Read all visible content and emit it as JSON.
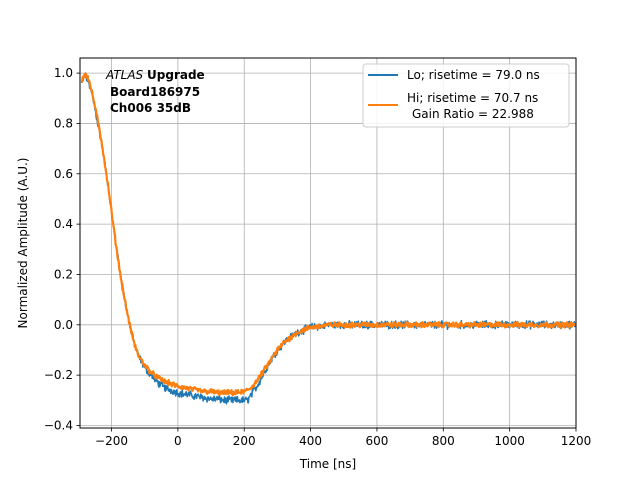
{
  "chart_data": {
    "type": "line",
    "title": "",
    "xlabel": "Time [ns]",
    "ylabel": "Normalized Amplitude (A.U.)",
    "xlim": [
      -295,
      1200
    ],
    "ylim": [
      -0.41,
      1.06
    ],
    "xticks": [
      -200,
      0,
      200,
      400,
      600,
      800,
      1000,
      1200
    ],
    "yticks": [
      -0.4,
      -0.2,
      0.0,
      0.2,
      0.4,
      0.6,
      0.8,
      1.0
    ],
    "grid": true,
    "legend_position": "upper-right",
    "annotation": {
      "experiment_italic": "ATLAS",
      "experiment_bold": "Upgrade",
      "board": "Board186975",
      "channel": "Ch006 35dB"
    },
    "series": [
      {
        "name": "Lo; risetime = 79.0 ns",
        "color": "#1f77b4",
        "noise": 0.012,
        "x": [
          -290,
          -280,
          -270,
          -260,
          -250,
          -240,
          -230,
          -220,
          -210,
          -200,
          -190,
          -180,
          -170,
          -160,
          -150,
          -140,
          -130,
          -120,
          -100,
          -80,
          -60,
          -40,
          -20,
          0,
          20,
          40,
          60,
          80,
          100,
          120,
          140,
          160,
          180,
          200,
          210,
          220,
          240,
          260,
          280,
          300,
          320,
          340,
          360,
          380,
          400,
          430,
          460,
          500,
          550,
          600,
          650,
          700,
          750,
          800,
          850,
          900,
          950,
          1000,
          1050,
          1100,
          1150,
          1200
        ],
        "y": [
          0.96,
          0.99,
          0.97,
          0.92,
          0.86,
          0.79,
          0.72,
          0.64,
          0.55,
          0.45,
          0.35,
          0.26,
          0.18,
          0.1,
          0.03,
          -0.03,
          -0.08,
          -0.12,
          -0.17,
          -0.2,
          -0.23,
          -0.25,
          -0.26,
          -0.27,
          -0.275,
          -0.28,
          -0.285,
          -0.29,
          -0.295,
          -0.295,
          -0.3,
          -0.3,
          -0.3,
          -0.3,
          -0.3,
          -0.28,
          -0.24,
          -0.19,
          -0.14,
          -0.1,
          -0.07,
          -0.05,
          -0.03,
          -0.02,
          -0.01,
          -0.005,
          0.0,
          0.0,
          0.0,
          0.0,
          0.0,
          0.0,
          0.0,
          0.0,
          0.0,
          0.0,
          0.0,
          0.0,
          0.0,
          0.0,
          0.0,
          0.0
        ]
      },
      {
        "name": "Hi; risetime = 70.7 ns",
        "name_extra": "Gain Ratio = 22.988",
        "color": "#ff7f0e",
        "noise": 0.008,
        "x": [
          -290,
          -280,
          -270,
          -260,
          -250,
          -240,
          -230,
          -220,
          -210,
          -200,
          -190,
          -180,
          -170,
          -160,
          -150,
          -140,
          -130,
          -120,
          -100,
          -80,
          -60,
          -40,
          -20,
          0,
          20,
          40,
          60,
          80,
          100,
          120,
          140,
          160,
          180,
          200,
          210,
          220,
          240,
          260,
          280,
          300,
          320,
          340,
          360,
          380,
          400,
          430,
          460,
          500,
          550,
          600,
          650,
          700,
          750,
          800,
          850,
          900,
          950,
          1000,
          1050,
          1100,
          1150,
          1200
        ],
        "y": [
          0.97,
          1.0,
          0.98,
          0.93,
          0.87,
          0.8,
          0.73,
          0.64,
          0.55,
          0.45,
          0.35,
          0.26,
          0.17,
          0.1,
          0.03,
          -0.03,
          -0.08,
          -0.12,
          -0.16,
          -0.19,
          -0.21,
          -0.225,
          -0.235,
          -0.245,
          -0.25,
          -0.255,
          -0.26,
          -0.265,
          -0.265,
          -0.27,
          -0.27,
          -0.27,
          -0.27,
          -0.265,
          -0.26,
          -0.25,
          -0.22,
          -0.18,
          -0.14,
          -0.1,
          -0.07,
          -0.05,
          -0.03,
          -0.02,
          -0.01,
          -0.005,
          0.0,
          0.0,
          0.0,
          0.0,
          0.0,
          0.0,
          0.0,
          0.0,
          0.0,
          0.0,
          0.0,
          0.0,
          0.0,
          0.0,
          0.0,
          0.0
        ]
      }
    ]
  }
}
